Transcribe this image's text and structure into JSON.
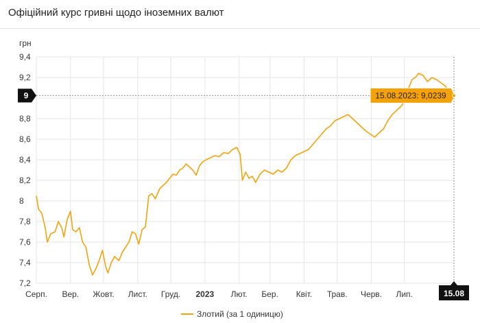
{
  "header": {
    "title": "Офіційний курс гривні щодо іноземних валют"
  },
  "colors": {
    "series": "#f5a20a",
    "badge_dark": "#111111",
    "tooltip_bg": "#f5a20a"
  },
  "chart_data": {
    "type": "line",
    "unit": "грн",
    "ylim": [
      7.2,
      9.4
    ],
    "y_ticks": [
      "7,2",
      "7,4",
      "7,6",
      "7,8",
      "8",
      "8,2",
      "8,4",
      "8,6",
      "8,8",
      "9",
      "9,2",
      "9,4"
    ],
    "y_tick_values": [
      7.2,
      7.4,
      7.6,
      7.8,
      8.0,
      8.2,
      8.4,
      8.6,
      8.8,
      9.0,
      9.2,
      9.4
    ],
    "x_ticks": [
      "Серп.",
      "Вер.",
      "Жовт.",
      "Лист.",
      "Груд.",
      "2023",
      "Лют.",
      "Бер.",
      "Квіт.",
      "Трав.",
      "Черв.",
      "Лип."
    ],
    "x_tick_dates": [
      "2022-08-01",
      "2022-09-01",
      "2022-10-01",
      "2022-11-01",
      "2022-12-01",
      "2023-01-01",
      "2023-02-01",
      "2023-03-01",
      "2023-04-01",
      "2023-05-01",
      "2023-06-01",
      "2023-07-01"
    ],
    "x_range": [
      "2022-08-01",
      "2023-08-15"
    ],
    "grid": true,
    "legend_position": "bottom",
    "series": [
      {
        "name": "Злотий (за 1 одиницю)",
        "points": [
          [
            "2022-08-01",
            8.05
          ],
          [
            "2022-08-03",
            7.92
          ],
          [
            "2022-08-06",
            7.88
          ],
          [
            "2022-08-09",
            7.74
          ],
          [
            "2022-08-11",
            7.6
          ],
          [
            "2022-08-14",
            7.68
          ],
          [
            "2022-08-18",
            7.7
          ],
          [
            "2022-08-21",
            7.8
          ],
          [
            "2022-08-24",
            7.74
          ],
          [
            "2022-08-26",
            7.65
          ],
          [
            "2022-08-29",
            7.82
          ],
          [
            "2022-09-01",
            7.9
          ],
          [
            "2022-09-03",
            7.72
          ],
          [
            "2022-09-06",
            7.7
          ],
          [
            "2022-09-09",
            7.74
          ],
          [
            "2022-09-12",
            7.6
          ],
          [
            "2022-09-15",
            7.55
          ],
          [
            "2022-09-18",
            7.38
          ],
          [
            "2022-09-21",
            7.28
          ],
          [
            "2022-09-24",
            7.34
          ],
          [
            "2022-09-27",
            7.42
          ],
          [
            "2022-09-30",
            7.52
          ],
          [
            "2022-10-03",
            7.36
          ],
          [
            "2022-10-05",
            7.3
          ],
          [
            "2022-10-08",
            7.4
          ],
          [
            "2022-10-11",
            7.46
          ],
          [
            "2022-10-15",
            7.42
          ],
          [
            "2022-10-18",
            7.5
          ],
          [
            "2022-10-21",
            7.55
          ],
          [
            "2022-10-24",
            7.6
          ],
          [
            "2022-10-27",
            7.7
          ],
          [
            "2022-10-30",
            7.68
          ],
          [
            "2022-11-02",
            7.58
          ],
          [
            "2022-11-05",
            7.72
          ],
          [
            "2022-11-08",
            7.75
          ],
          [
            "2022-11-11",
            8.05
          ],
          [
            "2022-11-14",
            8.07
          ],
          [
            "2022-11-17",
            8.02
          ],
          [
            "2022-11-21",
            8.12
          ],
          [
            "2022-11-24",
            8.15
          ],
          [
            "2022-11-27",
            8.18
          ],
          [
            "2022-11-30",
            8.22
          ],
          [
            "2022-12-03",
            8.26
          ],
          [
            "2022-12-06",
            8.25
          ],
          [
            "2022-12-09",
            8.3
          ],
          [
            "2022-12-12",
            8.32
          ],
          [
            "2022-12-15",
            8.36
          ],
          [
            "2022-12-18",
            8.33
          ],
          [
            "2022-12-21",
            8.3
          ],
          [
            "2022-12-24",
            8.25
          ],
          [
            "2022-12-27",
            8.34
          ],
          [
            "2022-12-30",
            8.38
          ],
          [
            "2023-01-02",
            8.4
          ],
          [
            "2023-01-06",
            8.42
          ],
          [
            "2023-01-10",
            8.44
          ],
          [
            "2023-01-14",
            8.43
          ],
          [
            "2023-01-18",
            8.47
          ],
          [
            "2023-01-22",
            8.46
          ],
          [
            "2023-01-26",
            8.5
          ],
          [
            "2023-01-30",
            8.52
          ],
          [
            "2023-02-02",
            8.45
          ],
          [
            "2023-02-04",
            8.2
          ],
          [
            "2023-02-07",
            8.28
          ],
          [
            "2023-02-10",
            8.22
          ],
          [
            "2023-02-13",
            8.24
          ],
          [
            "2023-02-16",
            8.18
          ],
          [
            "2023-02-20",
            8.26
          ],
          [
            "2023-02-24",
            8.3
          ],
          [
            "2023-02-28",
            8.28
          ],
          [
            "2023-03-04",
            8.26
          ],
          [
            "2023-03-08",
            8.3
          ],
          [
            "2023-03-12",
            8.28
          ],
          [
            "2023-03-16",
            8.32
          ],
          [
            "2023-03-20",
            8.4
          ],
          [
            "2023-03-24",
            8.44
          ],
          [
            "2023-03-28",
            8.46
          ],
          [
            "2023-04-01",
            8.48
          ],
          [
            "2023-04-05",
            8.5
          ],
          [
            "2023-04-09",
            8.55
          ],
          [
            "2023-04-13",
            8.6
          ],
          [
            "2023-04-17",
            8.65
          ],
          [
            "2023-04-21",
            8.7
          ],
          [
            "2023-04-25",
            8.73
          ],
          [
            "2023-04-29",
            8.78
          ],
          [
            "2023-05-03",
            8.8
          ],
          [
            "2023-05-07",
            8.82
          ],
          [
            "2023-05-11",
            8.84
          ],
          [
            "2023-05-15",
            8.8
          ],
          [
            "2023-05-19",
            8.76
          ],
          [
            "2023-05-23",
            8.72
          ],
          [
            "2023-05-27",
            8.68
          ],
          [
            "2023-05-31",
            8.65
          ],
          [
            "2023-06-04",
            8.62
          ],
          [
            "2023-06-08",
            8.66
          ],
          [
            "2023-06-12",
            8.7
          ],
          [
            "2023-06-16",
            8.78
          ],
          [
            "2023-06-20",
            8.84
          ],
          [
            "2023-06-24",
            8.88
          ],
          [
            "2023-06-28",
            8.92
          ],
          [
            "2023-07-02",
            8.98
          ],
          [
            "2023-07-05",
            9.1
          ],
          [
            "2023-07-08",
            9.18
          ],
          [
            "2023-07-11",
            9.2
          ],
          [
            "2023-07-14",
            9.24
          ],
          [
            "2023-07-18",
            9.22
          ],
          [
            "2023-07-22",
            9.16
          ],
          [
            "2023-07-26",
            9.2
          ],
          [
            "2023-07-30",
            9.18
          ],
          [
            "2023-08-03",
            9.15
          ],
          [
            "2023-08-07",
            9.12
          ],
          [
            "2023-08-11",
            9.05
          ],
          [
            "2023-08-15",
            9.0239
          ]
        ]
      }
    ],
    "tooltip": {
      "date": "2023-08-15",
      "value": 9.0239,
      "text": "15.08.2023: 9,0239"
    },
    "crosshair": {
      "y_label": "9",
      "x_label": "15.08"
    }
  }
}
